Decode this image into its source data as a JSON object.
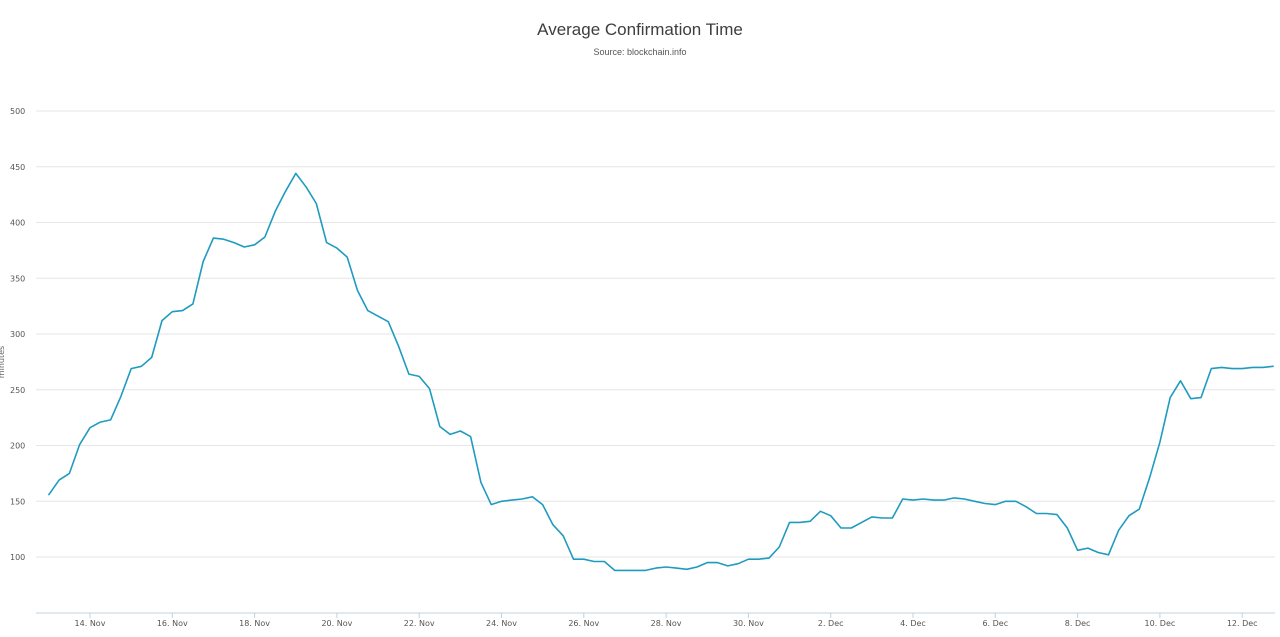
{
  "chart_data": {
    "type": "line",
    "title": "Average Confirmation Time",
    "subtitle": "Source: blockchain.info",
    "ylabel": "minutes",
    "xlabel": "",
    "ylim": [
      50,
      500
    ],
    "y_ticks": [
      100,
      150,
      200,
      250,
      300,
      350,
      400,
      450,
      500
    ],
    "x_ticks": [
      "14. Nov",
      "16. Nov",
      "18. Nov",
      "20. Nov",
      "22. Nov",
      "24. Nov",
      "26. Nov",
      "28. Nov",
      "30. Nov",
      "2. Dec",
      "4. Dec",
      "6. Dec",
      "8. Dec",
      "10. Dec",
      "12. Dec"
    ],
    "x_start": "13. Nov",
    "x_step_days": 0.25,
    "grid": true,
    "line_color": "#1f9bbf",
    "series": [
      {
        "values": [
          156,
          169,
          175,
          201,
          216,
          221,
          223,
          244,
          269,
          271,
          279,
          312,
          320,
          321,
          327,
          365,
          386,
          385,
          382,
          378,
          380,
          387,
          410,
          428,
          444,
          432,
          417,
          382,
          377,
          369,
          339,
          321,
          316,
          311,
          289,
          264,
          262,
          251,
          217,
          210,
          213,
          208,
          167,
          147,
          150,
          151,
          152,
          154,
          147,
          129,
          119,
          98,
          98,
          96,
          96,
          88,
          88,
          88,
          88,
          90,
          91,
          90,
          89,
          91,
          95,
          95,
          92,
          94,
          98,
          98,
          99,
          109,
          131,
          131,
          132,
          141,
          137,
          126,
          126,
          131,
          136,
          135,
          135,
          152,
          151,
          152,
          151,
          151,
          153,
          152,
          150,
          148,
          147,
          150,
          150,
          145,
          139,
          139,
          138,
          126,
          106,
          108,
          104,
          102,
          124,
          137,
          143,
          171,
          203,
          243,
          258,
          242,
          243,
          269,
          270,
          269,
          269,
          270,
          270,
          271
        ]
      }
    ]
  }
}
